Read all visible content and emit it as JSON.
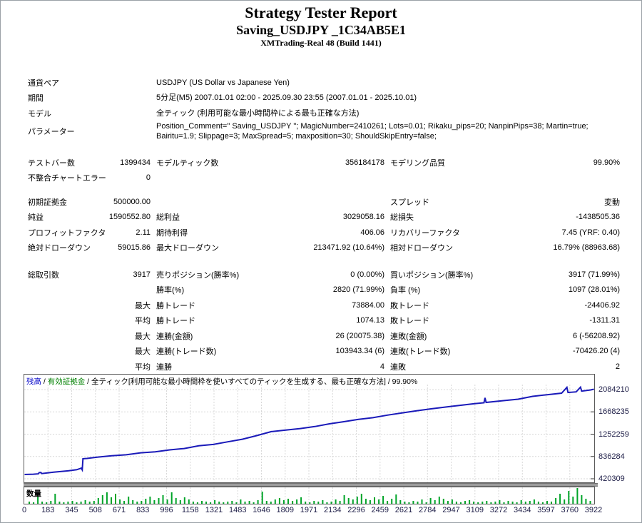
{
  "header": {
    "title": "Strategy Tester Report",
    "subtitle": "Saving_USDJPY _1C34AB5E1",
    "broker": "XMTrading-Real 48 (Build 1441)"
  },
  "info_rows": [
    {
      "label": "通貨ペア",
      "value": "USDJPY (US Dollar vs Japanese Yen)"
    },
    {
      "label": "期間",
      "value": "5分足(M5) 2007.01.01 02:00 - 2025.09.30 23:55 (2007.01.01 - 2025.10.01)"
    },
    {
      "label": "モデル",
      "value": "全ティック (利用可能な最小時間枠による最も正確な方法)"
    },
    {
      "label": "パラメーター",
      "value": "Position_Comment=\" Saving_USDJPY \"; MagicNumber=2410261; Lots=0.01; Rikaku_pips=20; NanpinPips=38; Martin=true; Bairitu=1.9; Slippage=3; MaxSpread=5; maxposition=30; ShouldSkipEntry=false;"
    }
  ],
  "stats_rows": [
    {
      "l1": "テストバー数",
      "v1": "1399434",
      "l2": "モデルティック数",
      "v2": "356184178",
      "l3": "モデリング品質",
      "v3": "99.90%"
    },
    {
      "l1": "不整合チャートエラー",
      "v1": "0",
      "l2": "",
      "v2": "",
      "l3": "",
      "v3": ""
    },
    {
      "spacer": true,
      "h": 12
    },
    {
      "l1": "初期証拠金",
      "v1": "500000.00",
      "l2": "",
      "v2": "",
      "l3": "スプレッド",
      "v3": "変動"
    },
    {
      "l1": "純益",
      "v1": "1590552.80",
      "l2": "総利益",
      "v2": "3029058.16",
      "l3": "総損失",
      "v3": "-1438505.36"
    },
    {
      "l1": "プロフィットファクタ",
      "v1": "2.11",
      "l2": "期待利得",
      "v2": "406.06",
      "l3": "リカバリーファクタ",
      "v3": "7.45 (YRF: 0.40)"
    },
    {
      "l1": "絶対ドローダウン",
      "v1": "59015.86",
      "l2": "最大ドローダウン",
      "v2": "213471.92 (10.64%)",
      "l3": "相対ドローダウン",
      "v3": "16.79% (88963.68)"
    },
    {
      "spacer": true,
      "h": 16
    },
    {
      "l1": "総取引数",
      "v1": "3917",
      "l2": "売りポジション(勝率%)",
      "v2": "0 (0.00%)",
      "l3": "買いポジション(勝率%)",
      "v3": "3917 (71.99%)"
    },
    {
      "l1": "",
      "v1": "",
      "l2": "勝率(%)",
      "v2": "2820 (71.99%)",
      "l3": "負率 (%)",
      "v3": "1097 (28.01%)"
    },
    {
      "l1": "",
      "v1": "最大",
      "l2": "勝トレード",
      "v2": "73884.00",
      "l3": "敗トレード",
      "v3": "-24406.92"
    },
    {
      "l1": "",
      "v1": "平均",
      "l2": "勝トレード",
      "v2": "1074.13",
      "l3": "敗トレード",
      "v3": "-1311.31"
    },
    {
      "l1": "",
      "v1": "最大",
      "l2": "連勝(金額)",
      "v2": "26 (20075.38)",
      "l3": "連敗(金額)",
      "v3": "6 (-56208.92)"
    },
    {
      "l1": "",
      "v1": "最大",
      "l2": "連勝(トレード数)",
      "v2": "103943.34 (6)",
      "l3": "連敗(トレード数)",
      "v3": "-70426.20 (4)"
    },
    {
      "l1": "",
      "v1": "平均",
      "l2": "連勝",
      "v2": "4",
      "l3": "連敗",
      "v3": "2"
    }
  ],
  "chart_data": {
    "type": "line",
    "series_name": "残高",
    "legend_segments": [
      {
        "text": "残高",
        "color": "#0000c8"
      },
      {
        "text": " / ",
        "color": "#000000"
      },
      {
        "text": "有効証拠金",
        "color": "#008000"
      },
      {
        "text": " / 全ティック[利用可能な最小時間枠を使いすべてのティックを生成する、最も正確な方法] / 99.90%",
        "color": "#000000"
      }
    ],
    "line_color": "#1a1ab9",
    "grid_color": "#d8d8d8",
    "y_ticks": [
      420309,
      836284,
      1252259,
      1668235,
      2084210
    ],
    "x_ticks": [
      0,
      183,
      345,
      508,
      671,
      833,
      996,
      1158,
      1321,
      1483,
      1646,
      1809,
      1971,
      2134,
      2296,
      2459,
      2621,
      2784,
      2947,
      3109,
      3272,
      3434,
      3597,
      3760,
      3922
    ],
    "x_range": [
      0,
      3922
    ],
    "xlabel": "",
    "ylabel": "",
    "grid": true,
    "legend_position": "top-left",
    "equity_points": [
      [
        0,
        500000
      ],
      [
        60,
        506000
      ],
      [
        95,
        512000
      ],
      [
        100,
        535000
      ],
      [
        112,
        537000
      ],
      [
        118,
        518000
      ],
      [
        200,
        543000
      ],
      [
        300,
        568000
      ],
      [
        360,
        590000
      ],
      [
        390,
        618000
      ],
      [
        397,
        585000
      ],
      [
        402,
        795000
      ],
      [
        430,
        800000
      ],
      [
        500,
        822000
      ],
      [
        600,
        850000
      ],
      [
        700,
        868000
      ],
      [
        800,
        905000
      ],
      [
        900,
        923000
      ],
      [
        1000,
        960000
      ],
      [
        1100,
        985000
      ],
      [
        1200,
        1035000
      ],
      [
        1300,
        1060000
      ],
      [
        1400,
        1110000
      ],
      [
        1500,
        1158000
      ],
      [
        1600,
        1225000
      ],
      [
        1700,
        1300000
      ],
      [
        1800,
        1330000
      ],
      [
        1900,
        1358000
      ],
      [
        2000,
        1395000
      ],
      [
        2100,
        1445000
      ],
      [
        2200,
        1485000
      ],
      [
        2300,
        1528000
      ],
      [
        2400,
        1560000
      ],
      [
        2500,
        1608000
      ],
      [
        2600,
        1648000
      ],
      [
        2700,
        1688000
      ],
      [
        2800,
        1725000
      ],
      [
        2900,
        1758000
      ],
      [
        3000,
        1790000
      ],
      [
        3100,
        1822000
      ],
      [
        3165,
        1838000
      ],
      [
        3172,
        1930000
      ],
      [
        3180,
        1845000
      ],
      [
        3300,
        1878000
      ],
      [
        3400,
        1905000
      ],
      [
        3500,
        1958000
      ],
      [
        3600,
        1988000
      ],
      [
        3700,
        2018000
      ],
      [
        3736,
        2125000
      ],
      [
        3744,
        2030000
      ],
      [
        3800,
        2042000
      ],
      [
        3830,
        2130000
      ],
      [
        3838,
        2055000
      ],
      [
        3900,
        2078000
      ],
      [
        3922,
        2090553
      ]
    ],
    "volume_label": "数量",
    "volume_color": "#00a428",
    "volume_bars": [
      3,
      2,
      10,
      3,
      2,
      4,
      14,
      3,
      2,
      3,
      4,
      2,
      3,
      5,
      3,
      4,
      8,
      12,
      16,
      9,
      14,
      6,
      4,
      10,
      5,
      3,
      4,
      7,
      10,
      5,
      8,
      12,
      6,
      16,
      8,
      5,
      9,
      6,
      3,
      2,
      4,
      3,
      2,
      5,
      3,
      2,
      3,
      4,
      2,
      6,
      3,
      4,
      2,
      5,
      17,
      4,
      3,
      6,
      8,
      5,
      7,
      4,
      6,
      9,
      3,
      2,
      4,
      3,
      5,
      2,
      3,
      6,
      4,
      12,
      8,
      6,
      10,
      14,
      7,
      5,
      9,
      6,
      11,
      4,
      7,
      13,
      5,
      3,
      2,
      4,
      3,
      6,
      2,
      8,
      5,
      10,
      7,
      4,
      6,
      3,
      2,
      4,
      5,
      3,
      2,
      3,
      4,
      2,
      3,
      5,
      2,
      4,
      3,
      2,
      5,
      3,
      4,
      6,
      3,
      2,
      4,
      3,
      8,
      14,
      6,
      18,
      10,
      22,
      12,
      7,
      4
    ]
  }
}
